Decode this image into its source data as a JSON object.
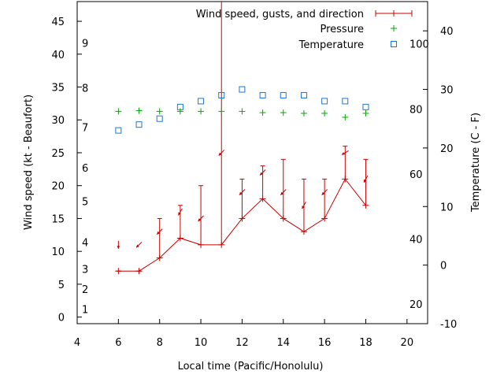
{
  "chart_data": {
    "type": "line",
    "xlabel": "Local time (Pacific/Honolulu)",
    "ylabel_left": "Wind speed (kt - Beaufort)",
    "ylabel_right": "Temperature (C - F)",
    "xlim": [
      4,
      21
    ],
    "ylim": [
      -1,
      48
    ],
    "x_ticks": [
      4,
      6,
      8,
      10,
      12,
      14,
      16,
      18,
      20
    ],
    "y_ticks": [
      0,
      5,
      10,
      15,
      20,
      25,
      30,
      35,
      40,
      45
    ],
    "beaufort_labels": [
      {
        "label": "1",
        "value": 1.2
      },
      {
        "label": "2",
        "value": 4.3
      },
      {
        "label": "3",
        "value": 7.3
      },
      {
        "label": "4",
        "value": 11.4
      },
      {
        "label": "5",
        "value": 17.6
      },
      {
        "label": "6",
        "value": 22.7
      },
      {
        "label": "7",
        "value": 28.9
      },
      {
        "label": "8",
        "value": 34.9
      },
      {
        "label": "9",
        "value": 41.7
      }
    ],
    "celsius_ticks": [
      -10,
      0,
      10,
      20,
      30,
      40
    ],
    "celsius_range": [
      -10,
      45
    ],
    "fahrenheit_labels": [
      {
        "label": "20",
        "celsius": -6.67
      },
      {
        "label": "40",
        "celsius": 4.44
      },
      {
        "label": "60",
        "celsius": 15.56
      },
      {
        "label": "80",
        "celsius": 26.67
      },
      {
        "label": "100",
        "celsius": 37.78
      }
    ],
    "legend_position": "top-right",
    "series": [
      {
        "name": "Wind speed, gusts, and direction",
        "color": "#cc0000",
        "marker": "plus",
        "x": [
          6,
          7,
          8,
          9,
          10,
          11,
          12,
          13,
          14,
          15,
          16,
          17,
          18
        ],
        "speed": [
          7,
          7,
          9,
          12,
          11,
          11,
          15,
          18,
          15,
          13,
          15,
          21,
          17
        ],
        "gust": [
          7,
          7,
          15,
          17,
          20,
          60,
          21,
          23,
          24,
          21,
          21,
          26,
          24
        ],
        "direction_deg": [
          90,
          45,
          45,
          60,
          45,
          45,
          45,
          45,
          45,
          60,
          45,
          30,
          60
        ]
      },
      {
        "name": "Pressure",
        "color": "#00aa00",
        "marker": "plus",
        "x": [
          6,
          7,
          8,
          9,
          10,
          11,
          12,
          13,
          14,
          15,
          16,
          17,
          18
        ],
        "y": [
          31.3,
          31.4,
          31.3,
          31.3,
          31.3,
          31.3,
          31.3,
          31.1,
          31.1,
          31.0,
          31.0,
          30.4,
          31.0
        ]
      },
      {
        "name": "Temperature",
        "color": "#1f77d4",
        "marker": "square",
        "x": [
          6,
          7,
          8,
          9,
          10,
          11,
          12,
          13,
          14,
          15,
          16,
          17,
          18
        ],
        "celsius": [
          23,
          24,
          25,
          27,
          28,
          29,
          30,
          29,
          29,
          29,
          28,
          28,
          27
        ]
      }
    ]
  }
}
